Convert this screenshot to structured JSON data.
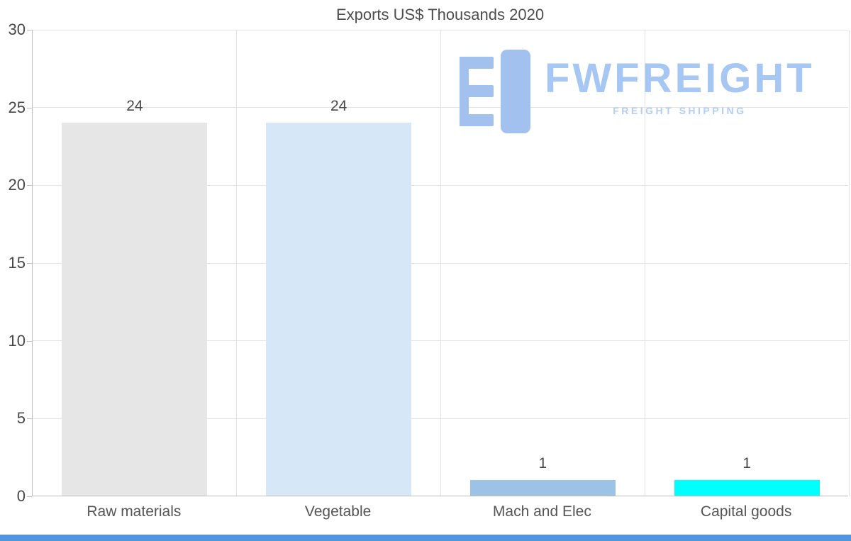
{
  "chart_data": {
    "type": "bar",
    "title": "Exports US$ Thousands 2020",
    "categories": [
      "Raw materials",
      "Vegetable",
      "Mach and Elec",
      "Capital goods"
    ],
    "values": [
      24,
      24,
      1,
      1
    ],
    "bar_colors": [
      "#e7e6e6",
      "#d6e7f8",
      "#9cc3e5",
      "#00ffff"
    ],
    "ylim": [
      0,
      30
    ],
    "yticks": [
      0,
      5,
      10,
      15,
      20,
      25,
      30
    ],
    "xlabel": "",
    "ylabel": "",
    "grid": true,
    "legend_position": "none"
  },
  "watermark": {
    "brand": "FWFREIGHT",
    "subtitle": "FREIGHT SHIPPING"
  },
  "colors": {
    "gridline": "#e3e3e3",
    "axis": "#bdbdbd",
    "brand_text": "#a6c7f3",
    "brand_subtitle": "#b3cdf5",
    "brand_icon": "#a3c1ee",
    "bottom_strip": "#5095e2"
  }
}
